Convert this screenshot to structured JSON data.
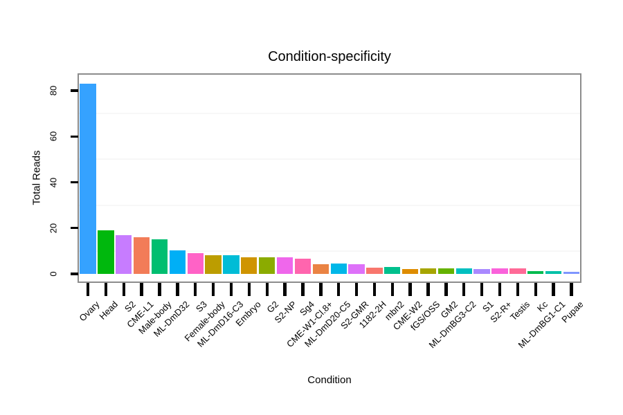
{
  "figure": {
    "background": "#FFFFFF",
    "panel_border_color": "#8C8C8C",
    "tick_color": "#000000",
    "minor_grid_color": "#F7F7F7",
    "text_color": "#000000"
  },
  "chart_data": {
    "type": "bar",
    "title": "Condition-specificity",
    "xlabel": "Condition",
    "ylabel": "Total Reads",
    "ylim": [
      0,
      88
    ],
    "y_ticks": [
      0,
      20,
      40,
      60,
      80
    ],
    "y_minor_gridlines": [
      10,
      30,
      50,
      70
    ],
    "grid": "minor-horizontal-only",
    "legend": "none",
    "x_tick_label_angle": 45,
    "y_tick_label_angle": 90,
    "categories": [
      "Ovary",
      "Head",
      "S2",
      "CME-L1",
      "Male-body",
      "ML-DmD32",
      "S3",
      "Female-body",
      "ML-DmD16-C3",
      "Embryo",
      "G2",
      "S2-NP",
      "Sg4",
      "CME-W1-Cl.8+",
      "ML-DmD20-C5",
      "S2-GMR",
      "1182-2H",
      "mbn2",
      "CME-W2",
      "fGS/OSS",
      "GM2",
      "ML-DmBG3-C2",
      "S1",
      "S2-R+",
      "Testis",
      "Kc",
      "ML-DmBG1-C1",
      "Pupae"
    ],
    "values": [
      83,
      19,
      17,
      16,
      15.2,
      10.3,
      9,
      8.2,
      8.2,
      7.2,
      7.3,
      7.3,
      6.6,
      4.1,
      4.6,
      4.3,
      2.6,
      3.1,
      2.1,
      2.3,
      2.4,
      2.3,
      2.1,
      2.3,
      2.5,
      1.2,
      1.2,
      1.0
    ],
    "colors": [
      "#35A2FF",
      "#00B80D",
      "#C77CFF",
      "#F27C58",
      "#00BE70",
      "#00AFF6",
      "#FF62C6",
      "#BC9D00",
      "#00BCD6",
      "#CF9400",
      "#8BAB00",
      "#EF67EB",
      "#FF65AE",
      "#EA8343",
      "#00B7E8",
      "#DE71F9",
      "#F8766D",
      "#00C08D",
      "#DE8C00",
      "#A6A500",
      "#65B200",
      "#00BFC0",
      "#A989FF",
      "#FA62DB",
      "#FF6A97",
      "#00BB4E",
      "#00C0A7",
      "#7F96FF"
    ]
  }
}
